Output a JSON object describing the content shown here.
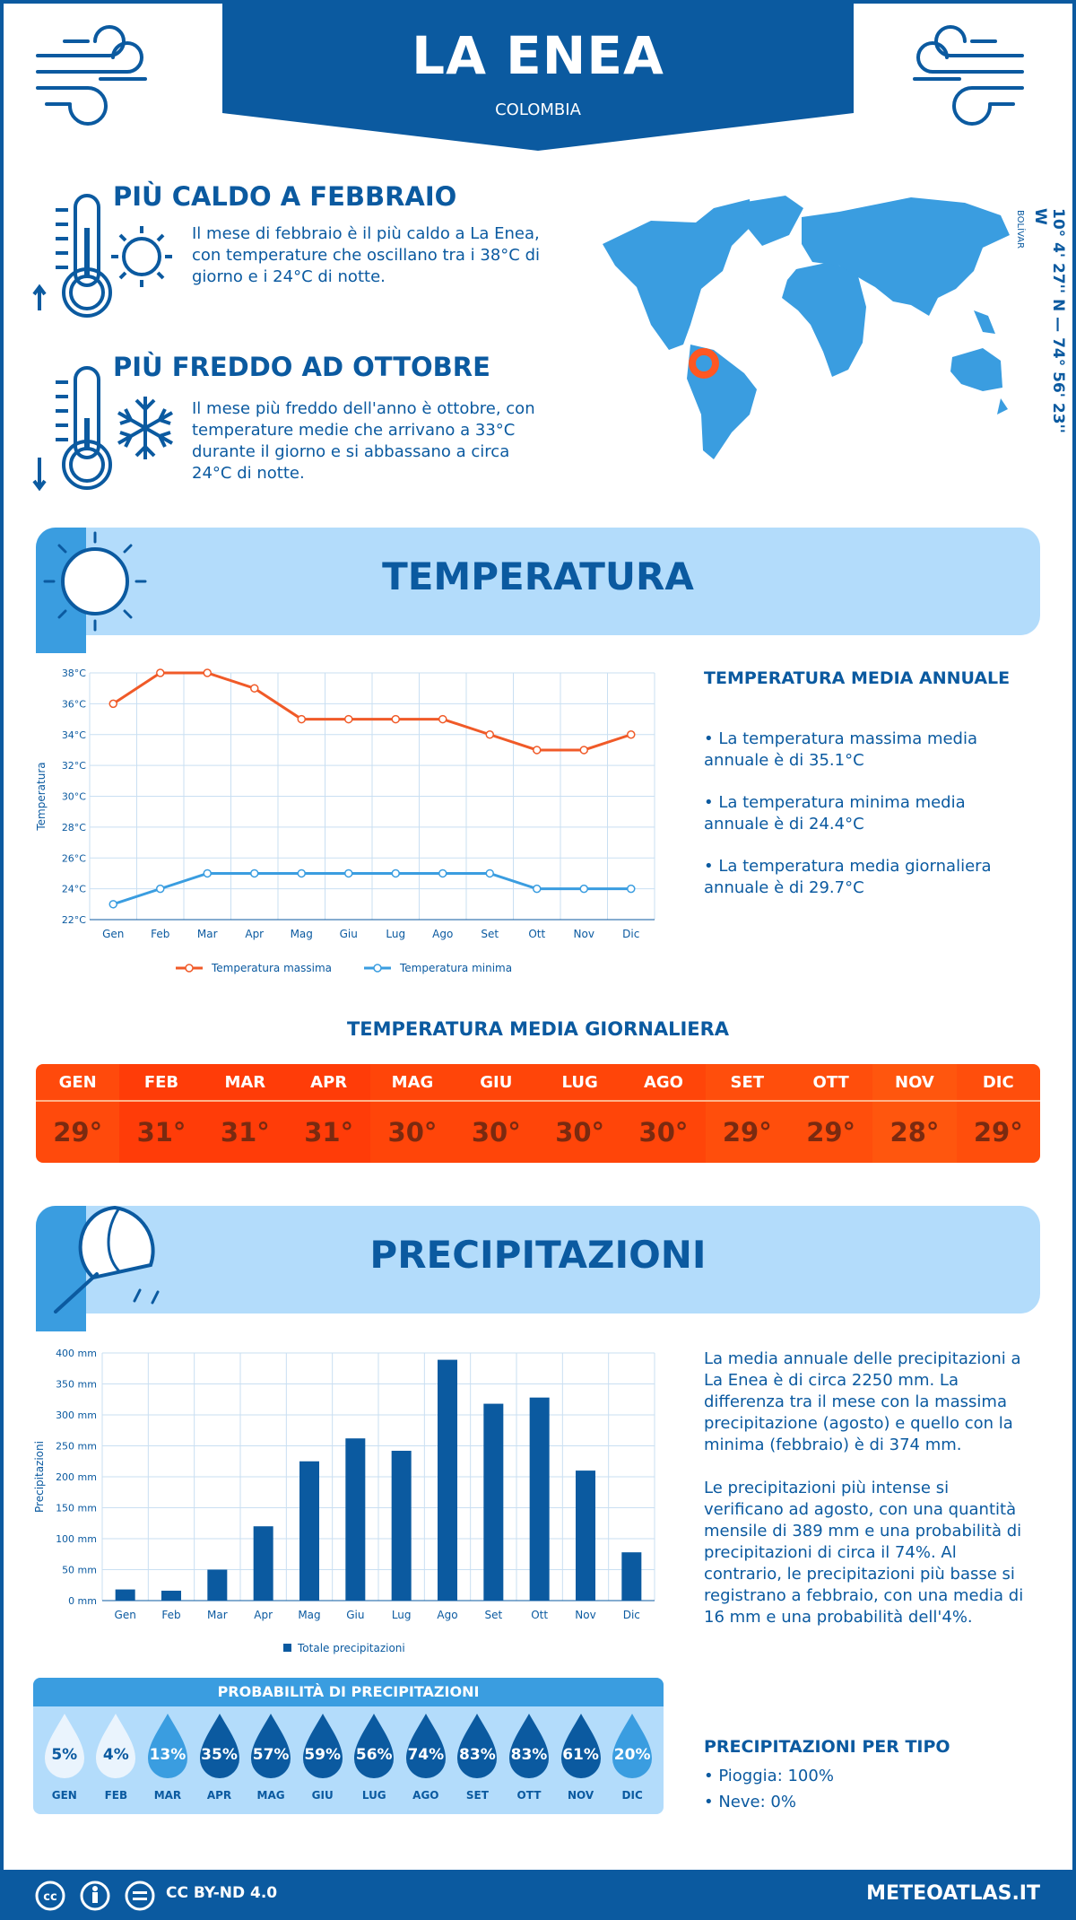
{
  "header": {
    "title": "LA ENEA",
    "country": "COLOMBIA"
  },
  "hot": {
    "title": "PIÙ CALDO A FEBBRAIO",
    "text": "Il mese di febbraio è il più caldo a La Enea, con temperature che oscillano tra i 38°C di giorno e i 24°C di notte."
  },
  "cold": {
    "title": "PIÙ FREDDO AD OTTOBRE",
    "text": "Il mese più freddo dell'anno è ottobre, con temperature medie che arrivano a 33°C durante il giorno e si abbassano a circa 24°C di notte."
  },
  "coords": {
    "text": "10° 4' 27'' N — 74° 56' 23'' W",
    "region": "BOLÍVAR"
  },
  "temperature": {
    "banner": "TEMPERATURA",
    "annual_title": "TEMPERATURA MEDIA ANNUALE",
    "bullets": [
      "• La temperatura massima media annuale è di 35.1°C",
      "• La temperatura minima media annuale è di 24.4°C",
      "• La temperatura media giornaliera annuale è di 29.7°C"
    ],
    "daily_title": "TEMPERATURA MEDIA GIORNALIERA",
    "daily": [
      {
        "m": "GEN",
        "v": "29°",
        "c": "#ff4a0c"
      },
      {
        "m": "FEB",
        "v": "31°",
        "c": "#ff3c08"
      },
      {
        "m": "MAR",
        "v": "31°",
        "c": "#ff3c08"
      },
      {
        "m": "APR",
        "v": "31°",
        "c": "#ff3c08"
      },
      {
        "m": "MAG",
        "v": "30°",
        "c": "#ff4509"
      },
      {
        "m": "GIU",
        "v": "30°",
        "c": "#ff4509"
      },
      {
        "m": "LUG",
        "v": "30°",
        "c": "#ff4509"
      },
      {
        "m": "AGO",
        "v": "30°",
        "c": "#ff4509"
      },
      {
        "m": "SET",
        "v": "29°",
        "c": "#ff4e0c"
      },
      {
        "m": "OTT",
        "v": "29°",
        "c": "#ff4e0c"
      },
      {
        "m": "NOV",
        "v": "28°",
        "c": "#ff560e"
      },
      {
        "m": "DIC",
        "v": "29°",
        "c": "#ff4e0c"
      }
    ]
  },
  "precipitation": {
    "banner": "PRECIPITAZIONI",
    "para1": "La media annuale delle precipitazioni a La Enea è di circa 2250 mm. La differenza tra il mese con la massima precipitazione (agosto) e quello con la minima (febbraio) è di 374 mm.",
    "para2": "Le precipitazioni più intense si verificano ad agosto, con una quantità mensile di 389 mm e una probabilità di precipitazioni di circa il 74%. Al contrario, le precipitazioni più basse si registrano a febbraio, con una media di 16 mm e una probabilità dell'4%.",
    "prob_title": "PROBABILITÀ DI PRECIPITAZIONI",
    "probs": [
      {
        "m": "GEN",
        "v": "5%",
        "c": "#eaf4fd",
        "t": "#0b5aa0"
      },
      {
        "m": "FEB",
        "v": "4%",
        "c": "#eaf4fd",
        "t": "#0b5aa0"
      },
      {
        "m": "MAR",
        "v": "13%",
        "c": "#3a9de0",
        "t": "#ffffff"
      },
      {
        "m": "APR",
        "v": "35%",
        "c": "#0b5aa0",
        "t": "#ffffff"
      },
      {
        "m": "MAG",
        "v": "57%",
        "c": "#0b5aa0",
        "t": "#ffffff"
      },
      {
        "m": "GIU",
        "v": "59%",
        "c": "#0b5aa0",
        "t": "#ffffff"
      },
      {
        "m": "LUG",
        "v": "56%",
        "c": "#0b5aa0",
        "t": "#ffffff"
      },
      {
        "m": "AGO",
        "v": "74%",
        "c": "#0b5aa0",
        "t": "#ffffff"
      },
      {
        "m": "SET",
        "v": "83%",
        "c": "#0b5aa0",
        "t": "#ffffff"
      },
      {
        "m": "OTT",
        "v": "83%",
        "c": "#0b5aa0",
        "t": "#ffffff"
      },
      {
        "m": "NOV",
        "v": "61%",
        "c": "#0b5aa0",
        "t": "#ffffff"
      },
      {
        "m": "DIC",
        "v": "20%",
        "c": "#3a9de0",
        "t": "#ffffff"
      }
    ],
    "type_title": "PRECIPITAZIONI PER TIPO",
    "types": [
      "• Pioggia: 100%",
      "• Neve: 0%"
    ]
  },
  "footer": {
    "license": "CC BY-ND 4.0",
    "site": "METEOATLAS.IT"
  },
  "chart_data": [
    {
      "type": "line",
      "categories": [
        "Gen",
        "Feb",
        "Mar",
        "Apr",
        "Mag",
        "Giu",
        "Lug",
        "Ago",
        "Set",
        "Ott",
        "Nov",
        "Dic"
      ],
      "series": [
        {
          "name": "Temperatura massima",
          "values": [
            36,
            38,
            38,
            37,
            35,
            35,
            35,
            35,
            34,
            33,
            33,
            34
          ],
          "color": "#f05a28"
        },
        {
          "name": "Temperatura minima",
          "values": [
            23,
            24,
            25,
            25,
            25,
            25,
            25,
            25,
            25,
            24,
            24,
            24
          ],
          "color": "#3a9de0"
        }
      ],
      "ylabel": "Temperatura",
      "ylim": [
        22,
        38
      ],
      "yticks": [
        "22°C",
        "24°C",
        "26°C",
        "28°C",
        "30°C",
        "32°C",
        "34°C",
        "36°C",
        "38°C"
      ],
      "grid": true,
      "legend": "bottom"
    },
    {
      "type": "bar",
      "categories": [
        "Gen",
        "Feb",
        "Mar",
        "Apr",
        "Mag",
        "Giu",
        "Lug",
        "Ago",
        "Set",
        "Ott",
        "Nov",
        "Dic"
      ],
      "series": [
        {
          "name": "Totale precipitazioni",
          "values": [
            18,
            16,
            50,
            120,
            225,
            262,
            242,
            389,
            318,
            328,
            210,
            78
          ],
          "color": "#0b5aa0"
        }
      ],
      "ylabel": "Precipitazioni",
      "ylim": [
        0,
        400
      ],
      "yticks": [
        "0 mm",
        "50 mm",
        "100 mm",
        "150 mm",
        "200 mm",
        "250 mm",
        "300 mm",
        "350 mm",
        "400 mm"
      ],
      "grid": true,
      "legend": "bottom"
    }
  ]
}
